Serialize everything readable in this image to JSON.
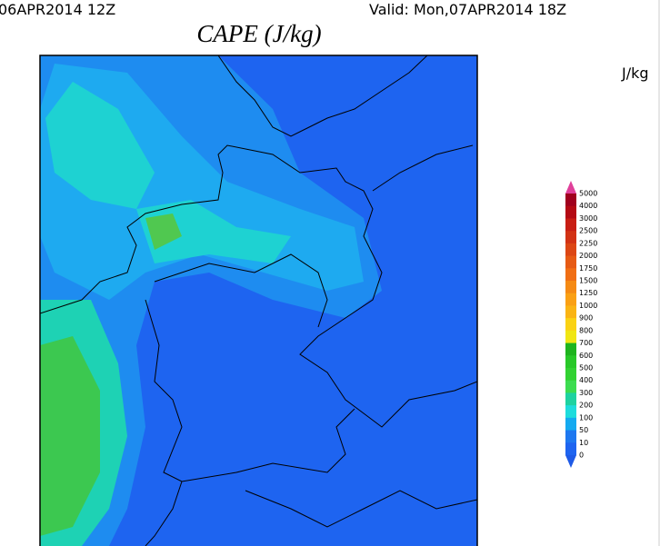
{
  "header": {
    "init_time": "06APR2014 12Z",
    "valid_time": "Valid: Mon,07APR2014 18Z",
    "title": "CAPE (J/kg)"
  },
  "colorbar": {
    "unit": "J/kg",
    "labels": [
      "5000",
      "4000",
      "3000",
      "2500",
      "2250",
      "2000",
      "1750",
      "1500",
      "1250",
      "1000",
      "900",
      "800",
      "700",
      "600",
      "500",
      "400",
      "300",
      "200",
      "100",
      "50",
      "10",
      "0"
    ],
    "colors": [
      "#e0409a",
      "#a0001e",
      "#b40a14",
      "#c81e14",
      "#d23214",
      "#dc4614",
      "#e65a14",
      "#f06e14",
      "#f58a14",
      "#faa014",
      "#fab414",
      "#fad214",
      "#f0e614",
      "#1eb41e",
      "#28c828",
      "#32d232",
      "#3cdc50",
      "#1ed2a0",
      "#1edcdc",
      "#14aaf0",
      "#1e78f0",
      "#1e64f0",
      "#1e5ae6"
    ]
  }
}
